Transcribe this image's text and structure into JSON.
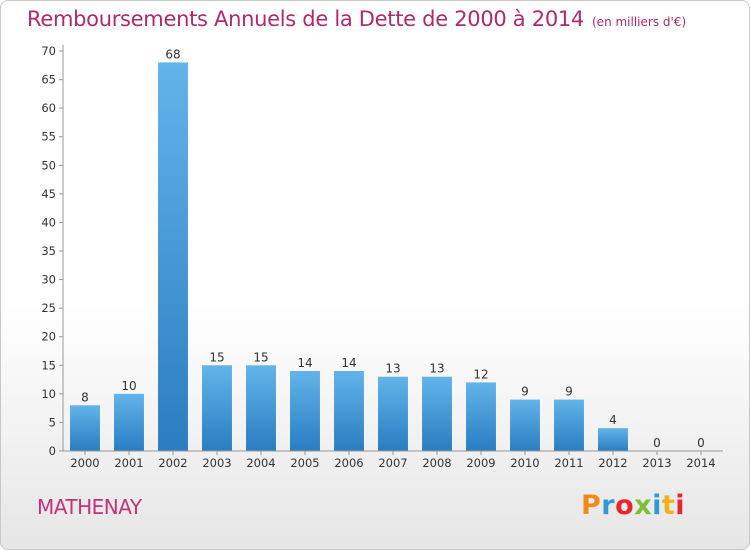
{
  "header": {
    "title": "Remboursements Annuels de la Dette de 2000 à 2014",
    "unit": "(en milliers d'€)"
  },
  "footer": {
    "town": "MATHENAY",
    "logo_text": "Proxiti",
    "logo_colors": [
      "#f08a1c",
      "#2f9ad6",
      "#e8262d",
      "#7cbf3a",
      "#2f9ad6",
      "#f2b21c",
      "#e8262d"
    ]
  },
  "colors": {
    "title": "#b0296b",
    "bar_light": "#62b4ea",
    "bar_dark": "#2a7dc0"
  },
  "chart_data": {
    "type": "bar",
    "title": "Remboursements Annuels de la Dette de 2000 à 2014",
    "subtitle": "(en milliers d'€)",
    "xlabel": "",
    "ylabel": "",
    "categories": [
      "2000",
      "2001",
      "2002",
      "2003",
      "2004",
      "2005",
      "2006",
      "2007",
      "2008",
      "2009",
      "2010",
      "2011",
      "2012",
      "2013",
      "2014"
    ],
    "values": [
      8,
      10,
      68,
      15,
      15,
      14,
      14,
      13,
      13,
      12,
      9,
      9,
      4,
      0,
      0
    ],
    "ylim": [
      0,
      70
    ],
    "yticks": [
      0,
      5,
      10,
      15,
      20,
      25,
      30,
      35,
      40,
      45,
      50,
      55,
      60,
      65,
      70
    ],
    "grid": false,
    "legend": "none"
  }
}
